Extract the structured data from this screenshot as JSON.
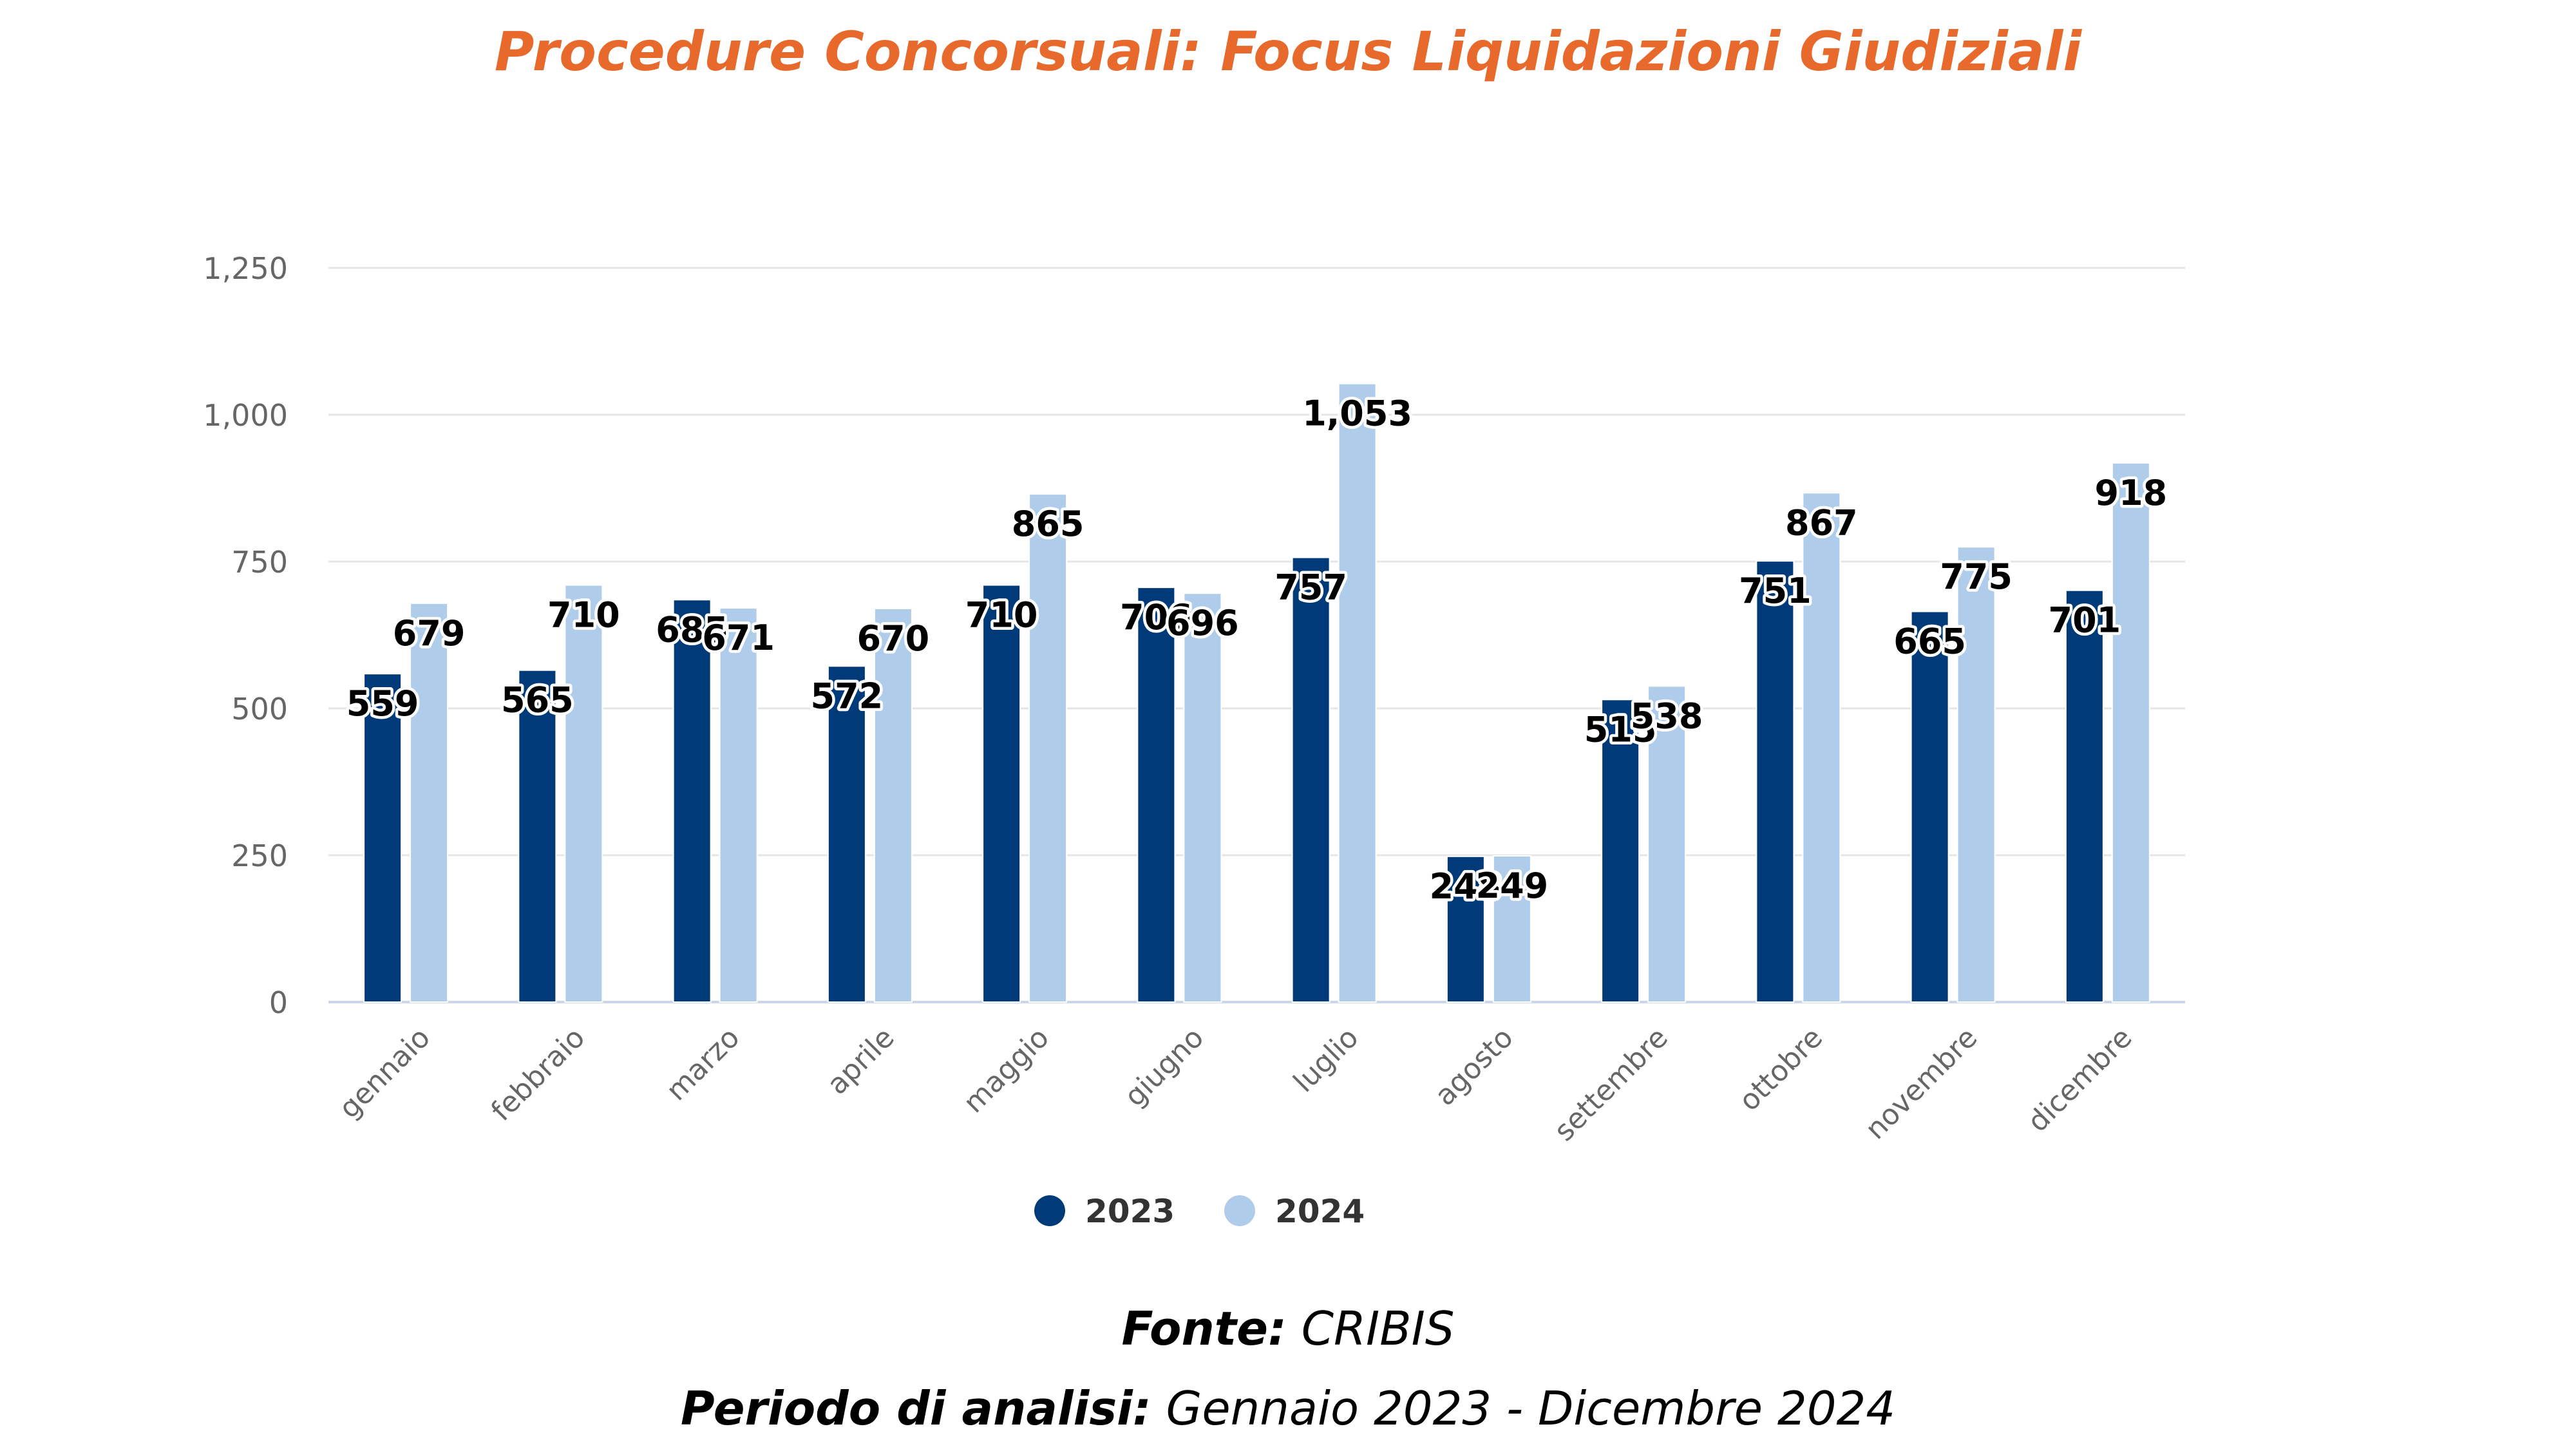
{
  "header": {
    "title": "Procedure Concorsuali: Focus Liquidazioni Giudiziali",
    "title_color": "#E8692C"
  },
  "chart_data": {
    "type": "bar",
    "categories": [
      "gennaio",
      "febbraio",
      "marzo",
      "aprile",
      "maggio",
      "giugno",
      "luglio",
      "agosto",
      "settembre",
      "ottobre",
      "novembre",
      "dicembre"
    ],
    "series": [
      {
        "name": "2023",
        "color": "#003A78",
        "values": [
          559,
          565,
          685,
          572,
          710,
          706,
          757,
          248,
          515,
          751,
          665,
          701
        ]
      },
      {
        "name": "2024",
        "color": "#AFCDEB",
        "values": [
          679,
          710,
          671,
          670,
          865,
          696,
          1053,
          249,
          538,
          867,
          775,
          918
        ]
      }
    ],
    "ylim": [
      0,
      1250
    ],
    "yticks": [
      0,
      250,
      500,
      750,
      1000,
      1250
    ],
    "ytick_labels": [
      "0",
      "250",
      "500",
      "750",
      "1,000",
      "1,250"
    ],
    "grid": true,
    "legend": "bottom-center",
    "data_labels": true
  },
  "footer": {
    "source_label": "Fonte:",
    "source_value": "CRIBIS",
    "period_label": "Periodo di analisi:",
    "period_value": "Gennaio 2023 - Dicembre 2024"
  }
}
